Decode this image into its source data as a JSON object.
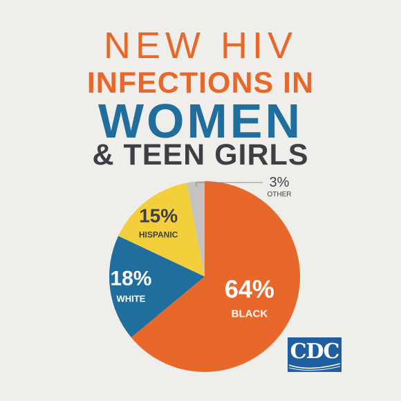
{
  "header": {
    "line1": "NEW HIV",
    "line2": "INFECTIONS IN",
    "line3": "WOMEN",
    "line4": "& TEEN GIRLS"
  },
  "colors": {
    "background": "#efeeea",
    "black_slice": "#e8682b",
    "white_slice": "#1f6e9e",
    "hispanic_slice": "#f2cf3b",
    "other_slice": "#c4c3c0",
    "heading_dark": "#3d3f45",
    "cdc_blue": "#1f5fa0"
  },
  "chart_data": {
    "type": "pie",
    "title": "NEW HIV INFECTIONS IN WOMEN & TEEN GIRLS",
    "slices": [
      {
        "label": "BLACK",
        "value": 64,
        "display": "64%",
        "color": "#e8682b"
      },
      {
        "label": "WHITE",
        "value": 18,
        "display": "18%",
        "color": "#1f6e9e"
      },
      {
        "label": "HISPANIC",
        "value": 15,
        "display": "15%",
        "color": "#f2cf3b"
      },
      {
        "label": "OTHER",
        "value": 3,
        "display": "3%",
        "color": "#c4c3c0"
      }
    ]
  },
  "logo": {
    "text": "CDC",
    "icon": "cdc-logo"
  }
}
